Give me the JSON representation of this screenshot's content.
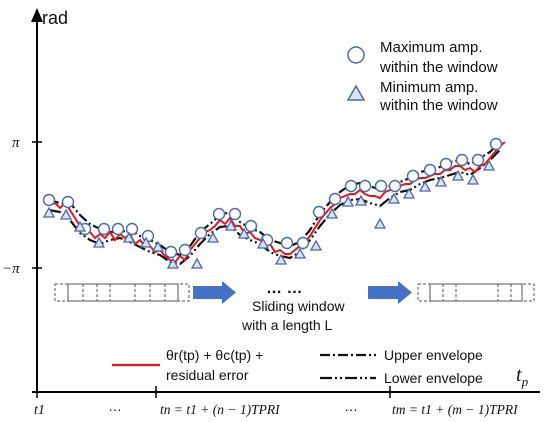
{
  "axes": {
    "y_label": "rad",
    "x_label": "t",
    "x_label_sub": "p",
    "y_ticks": [
      {
        "label": "π"
      },
      {
        "label": "−π"
      }
    ]
  },
  "legend_markers": [
    {
      "icon": "circle-marker-icon",
      "text1": "Maximum amp.",
      "text2": "within the window"
    },
    {
      "icon": "triangle-marker-icon",
      "text1": "Minimum amp.",
      "text2": "within the window"
    }
  ],
  "window": {
    "dots": "…  …",
    "caption1": "Sliding window",
    "caption2": "with a length L"
  },
  "legend_lines": {
    "signal_line1": "θr(tp) + θc(tp) +",
    "signal_line2": "residual error",
    "upper": "Upper envelope",
    "lower": "Lower envelope"
  },
  "x_ticks": [
    {
      "text": "t1"
    },
    {
      "text": "…"
    },
    {
      "text": "tn = t1 + (n − 1)TPRI"
    },
    {
      "text": "…"
    },
    {
      "text": "tm = t1 + (m − 1)TPRI"
    }
  ],
  "colors": {
    "signal": "#e8141c",
    "marker": "#4a6aa8",
    "arrow": "#4472c4",
    "axis": "#000000"
  }
}
